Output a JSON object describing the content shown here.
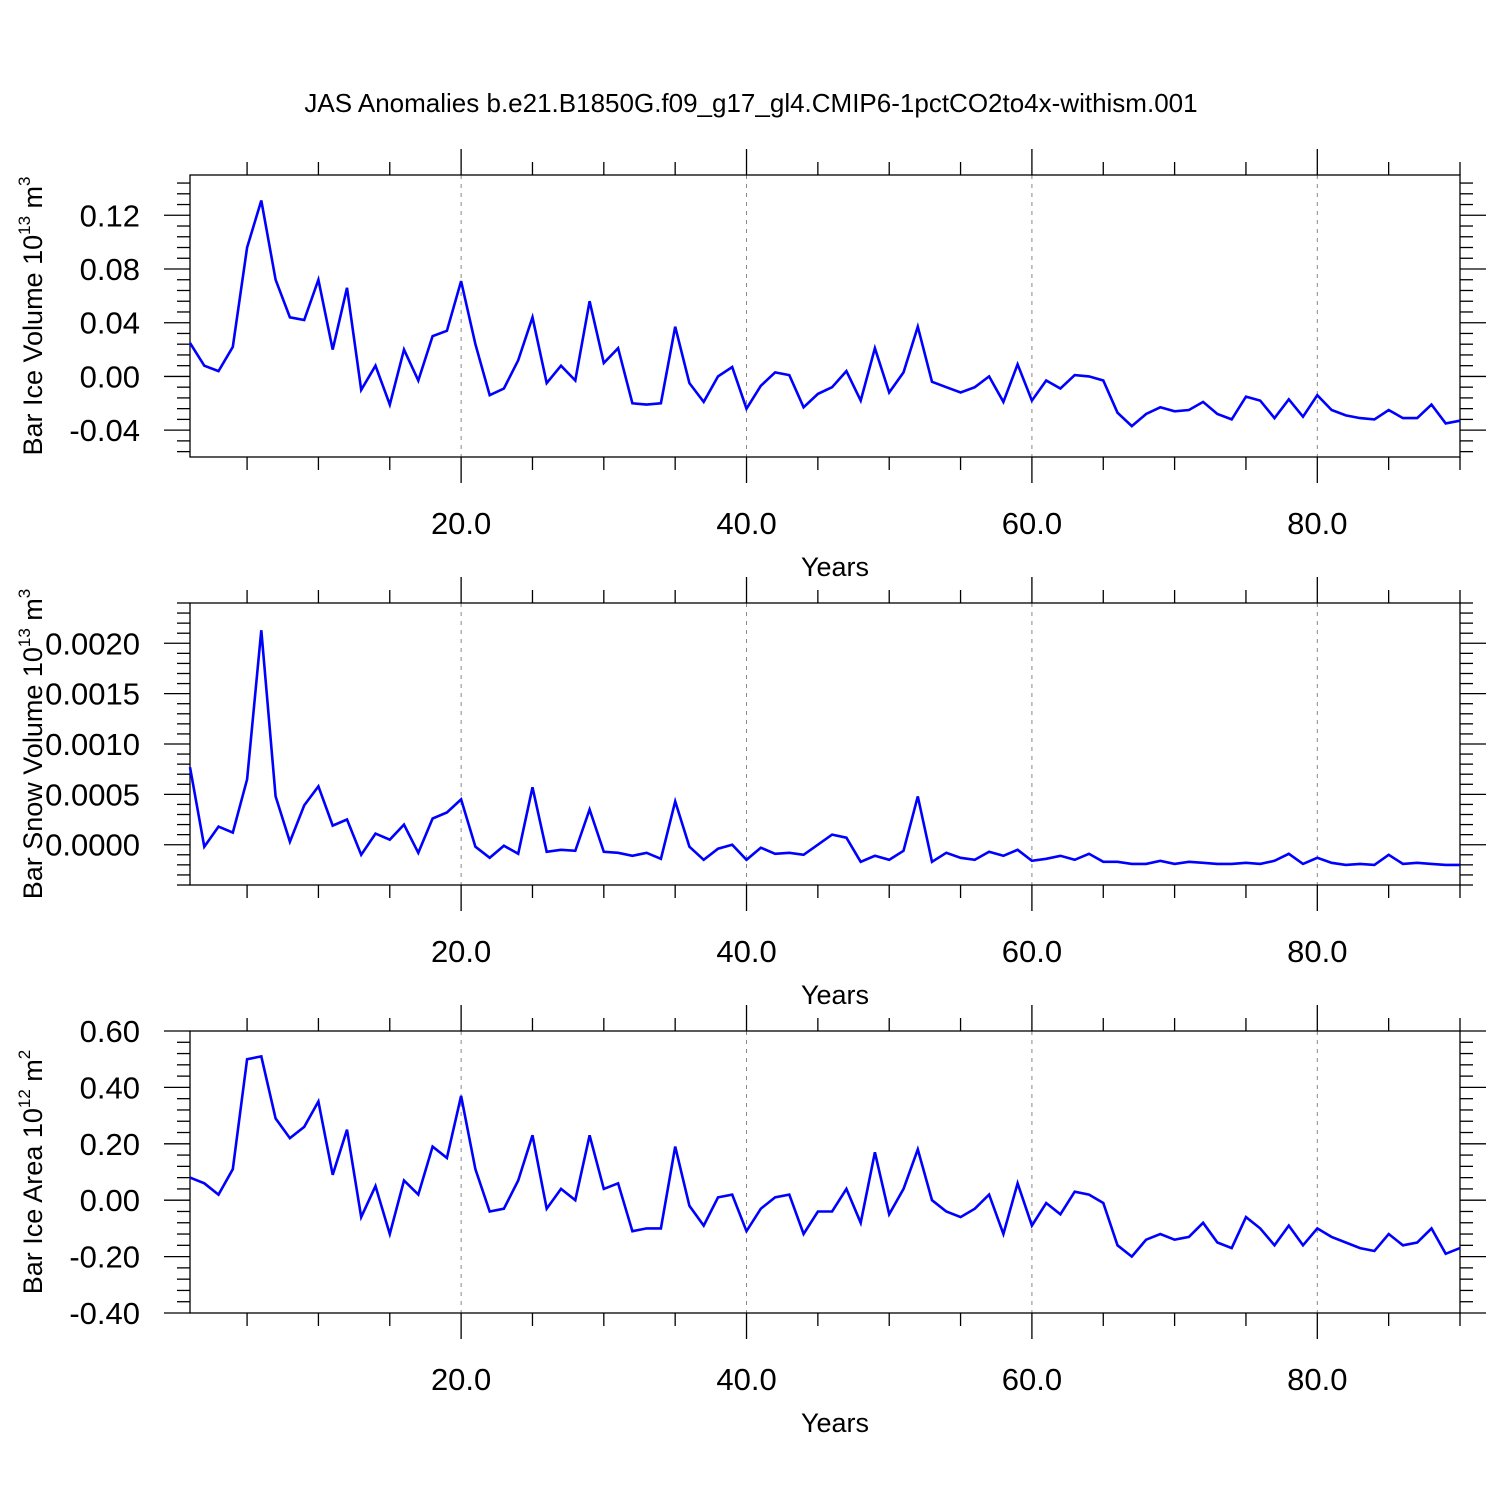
{
  "title": "JAS Anomalies b.e21.B1850G.f09_g17_gl4.CMIP6-1pctCO2to4x-withism.001",
  "colors": {
    "series": "#0000ff",
    "grid": "#888888",
    "frame": "#000000"
  },
  "chart_data": [
    {
      "type": "line",
      "xlabel": "Years",
      "ylabel": {
        "text": "Bar Ice Volume 10",
        "exp": "13",
        "unit": " m",
        "unit_exp": "3"
      },
      "xlim": [
        1,
        90
      ],
      "ylim": [
        -0.06,
        0.15
      ],
      "xticks": [
        20,
        40,
        60,
        80
      ],
      "xtick_labels": [
        "20.0",
        "40.0",
        "60.0",
        "80.0"
      ],
      "yticks": [
        -0.04,
        0.0,
        0.04,
        0.08,
        0.12
      ],
      "ytick_labels": [
        "-0.04",
        "0.00",
        "0.04",
        "0.08",
        "0.12"
      ],
      "grid": "vertical dashed at major x ticks",
      "x": [
        1,
        2,
        3,
        4,
        5,
        6,
        7,
        8,
        9,
        10,
        11,
        12,
        13,
        14,
        15,
        16,
        17,
        18,
        19,
        20,
        21,
        22,
        23,
        24,
        25,
        26,
        27,
        28,
        29,
        30,
        31,
        32,
        33,
        34,
        35,
        36,
        37,
        38,
        39,
        40,
        41,
        42,
        43,
        44,
        45,
        46,
        47,
        48,
        49,
        50,
        51,
        52,
        53,
        54,
        55,
        56,
        57,
        58,
        59,
        60,
        61,
        62,
        63,
        64,
        65,
        66,
        67,
        68,
        69,
        70,
        71,
        72,
        73,
        74,
        75,
        76,
        77,
        78,
        79,
        80,
        81,
        82,
        83,
        84,
        85,
        86,
        87,
        88,
        89,
        90
      ],
      "values": [
        0.025,
        0.008,
        0.004,
        0.022,
        0.096,
        0.131,
        0.072,
        0.044,
        0.042,
        0.072,
        0.02,
        0.066,
        -0.01,
        0.008,
        -0.021,
        0.02,
        -0.003,
        0.03,
        0.034,
        0.071,
        0.024,
        -0.014,
        -0.009,
        0.012,
        0.044,
        -0.005,
        0.008,
        -0.003,
        0.056,
        0.01,
        0.021,
        -0.02,
        -0.021,
        -0.02,
        0.037,
        -0.005,
        -0.019,
        0.0,
        0.007,
        -0.024,
        -0.007,
        0.003,
        0.001,
        -0.023,
        -0.013,
        -0.008,
        0.004,
        -0.018,
        0.021,
        -0.012,
        0.003,
        0.037,
        -0.004,
        -0.008,
        -0.012,
        -0.008,
        0.0,
        -0.019,
        0.009,
        -0.018,
        -0.003,
        -0.009,
        0.001,
        0.0,
        -0.003,
        -0.027,
        -0.037,
        -0.028,
        -0.023,
        -0.026,
        -0.025,
        -0.019,
        -0.028,
        -0.032,
        -0.015,
        -0.018,
        -0.031,
        -0.017,
        -0.03,
        -0.014,
        -0.025,
        -0.029,
        -0.031,
        -0.032,
        -0.025,
        -0.031,
        -0.031,
        -0.021,
        -0.035,
        -0.033
      ]
    },
    {
      "type": "line",
      "xlabel": "Years",
      "ylabel": {
        "text": "Bar Snow Volume 10",
        "exp": "13",
        "unit": " m",
        "unit_exp": "3"
      },
      "xlim": [
        1,
        90
      ],
      "ylim": [
        -0.0004,
        0.0024
      ],
      "xticks": [
        20,
        40,
        60,
        80
      ],
      "xtick_labels": [
        "20.0",
        "40.0",
        "60.0",
        "80.0"
      ],
      "yticks": [
        0.0,
        0.0005,
        0.001,
        0.0015,
        0.002
      ],
      "ytick_labels": [
        "0.0000",
        "0.0005",
        "0.0010",
        "0.0015",
        "0.0020"
      ],
      "grid": "vertical dashed at major x ticks",
      "x": [
        1,
        2,
        3,
        4,
        5,
        6,
        7,
        8,
        9,
        10,
        11,
        12,
        13,
        14,
        15,
        16,
        17,
        18,
        19,
        20,
        21,
        22,
        23,
        24,
        25,
        26,
        27,
        28,
        29,
        30,
        31,
        32,
        33,
        34,
        35,
        36,
        37,
        38,
        39,
        40,
        41,
        42,
        43,
        44,
        45,
        46,
        47,
        48,
        49,
        50,
        51,
        52,
        53,
        54,
        55,
        56,
        57,
        58,
        59,
        60,
        61,
        62,
        63,
        64,
        65,
        66,
        67,
        68,
        69,
        70,
        71,
        72,
        73,
        74,
        75,
        76,
        77,
        78,
        79,
        80,
        81,
        82,
        83,
        84,
        85,
        86,
        87,
        88,
        89,
        90
      ],
      "values": [
        0.00077,
        -2e-05,
        0.00018,
        0.00012,
        0.00065,
        0.00213,
        0.00048,
        3e-05,
        0.00039,
        0.00058,
        0.00019,
        0.00025,
        -0.0001,
        0.00011,
        5e-05,
        0.0002,
        -8e-05,
        0.00026,
        0.00032,
        0.00045,
        -2e-05,
        -0.00013,
        -1e-05,
        -9e-05,
        0.00057,
        -7e-05,
        -5e-05,
        -6e-05,
        0.00035,
        -7e-05,
        -8e-05,
        -0.00011,
        -8e-05,
        -0.00014,
        0.00043,
        -2e-05,
        -0.00015,
        -4e-05,
        0.0,
        -0.00015,
        -3e-05,
        -9e-05,
        -8e-05,
        -0.0001,
        0.0,
        0.0001,
        7e-05,
        -0.00017,
        -0.00011,
        -0.00015,
        -6e-05,
        0.00048,
        -0.00017,
        -8e-05,
        -0.00013,
        -0.00015,
        -7e-05,
        -0.00011,
        -5e-05,
        -0.00016,
        -0.00014,
        -0.00011,
        -0.00015,
        -9e-05,
        -0.00017,
        -0.00017,
        -0.00019,
        -0.00019,
        -0.00016,
        -0.00019,
        -0.00017,
        -0.00018,
        -0.00019,
        -0.00019,
        -0.00018,
        -0.00019,
        -0.00016,
        -9e-05,
        -0.00019,
        -0.00013,
        -0.00018,
        -0.0002,
        -0.00019,
        -0.0002,
        -0.0001,
        -0.00019,
        -0.00018,
        -0.00019,
        -0.0002,
        -0.0002
      ]
    },
    {
      "type": "line",
      "xlabel": "Years",
      "ylabel": {
        "text": "Bar Ice Area 10",
        "exp": "12",
        "unit": " m",
        "unit_exp": "2"
      },
      "xlim": [
        1,
        90
      ],
      "ylim": [
        -0.4,
        0.6
      ],
      "xticks": [
        20,
        40,
        60,
        80
      ],
      "xtick_labels": [
        "20.0",
        "40.0",
        "60.0",
        "80.0"
      ],
      "yticks": [
        -0.4,
        -0.2,
        0.0,
        0.2,
        0.4,
        0.6
      ],
      "ytick_labels": [
        "-0.40",
        "-0.20",
        "0.00",
        "0.20",
        "0.40",
        "0.60"
      ],
      "grid": "vertical dashed at major x ticks",
      "x": [
        1,
        2,
        3,
        4,
        5,
        6,
        7,
        8,
        9,
        10,
        11,
        12,
        13,
        14,
        15,
        16,
        17,
        18,
        19,
        20,
        21,
        22,
        23,
        24,
        25,
        26,
        27,
        28,
        29,
        30,
        31,
        32,
        33,
        34,
        35,
        36,
        37,
        38,
        39,
        40,
        41,
        42,
        43,
        44,
        45,
        46,
        47,
        48,
        49,
        50,
        51,
        52,
        53,
        54,
        55,
        56,
        57,
        58,
        59,
        60,
        61,
        62,
        63,
        64,
        65,
        66,
        67,
        68,
        69,
        70,
        71,
        72,
        73,
        74,
        75,
        76,
        77,
        78,
        79,
        80,
        81,
        82,
        83,
        84,
        85,
        86,
        87,
        88,
        89,
        90
      ],
      "values": [
        0.08,
        0.06,
        0.02,
        0.11,
        0.5,
        0.51,
        0.29,
        0.22,
        0.26,
        0.35,
        0.09,
        0.25,
        -0.06,
        0.05,
        -0.12,
        0.07,
        0.02,
        0.19,
        0.15,
        0.37,
        0.11,
        -0.04,
        -0.03,
        0.07,
        0.23,
        -0.03,
        0.04,
        0.0,
        0.23,
        0.04,
        0.06,
        -0.11,
        -0.1,
        -0.1,
        0.19,
        -0.02,
        -0.09,
        0.01,
        0.02,
        -0.11,
        -0.03,
        0.01,
        0.02,
        -0.12,
        -0.04,
        -0.04,
        0.04,
        -0.08,
        0.17,
        -0.05,
        0.04,
        0.18,
        0.0,
        -0.04,
        -0.06,
        -0.03,
        0.02,
        -0.12,
        0.06,
        -0.09,
        -0.01,
        -0.05,
        0.03,
        0.02,
        -0.01,
        -0.16,
        -0.2,
        -0.14,
        -0.12,
        -0.14,
        -0.13,
        -0.08,
        -0.15,
        -0.17,
        -0.06,
        -0.1,
        -0.16,
        -0.09,
        -0.16,
        -0.1,
        -0.13,
        -0.15,
        -0.17,
        -0.18,
        -0.12,
        -0.16,
        -0.15,
        -0.1,
        -0.19,
        -0.17
      ]
    }
  ]
}
